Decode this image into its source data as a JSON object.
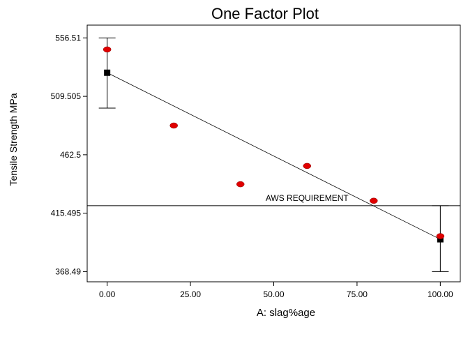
{
  "chart_data": {
    "type": "scatter",
    "title": "One Factor Plot",
    "xlabel": "A: slag%age",
    "ylabel": "Tensile Strength MPa",
    "xlim": [
      -6,
      106
    ],
    "ylim": [
      360.3,
      566.8
    ],
    "x_ticks": [
      "0.00",
      "25.00",
      "50.00",
      "75.00",
      "100.00"
    ],
    "y_ticks": [
      "556.51",
      "509.505",
      "462.5",
      "415.495",
      "368.49"
    ],
    "design_points": {
      "x": [
        0,
        20,
        40,
        60,
        80,
        100
      ],
      "y": [
        547.2,
        486.0,
        438.8,
        453.5,
        425.5,
        397.0
      ]
    },
    "fit_line": {
      "x": [
        0,
        100
      ],
      "y": [
        528.5,
        394.5
      ]
    },
    "error_bars": [
      {
        "x": 0,
        "center": 528.5,
        "low": 500.0,
        "high": 556.5
      },
      {
        "x": 100,
        "center": 394.5,
        "low": 368.5,
        "high": 421.5
      }
    ],
    "reference_line": {
      "y": 421.5,
      "label": "AWS REQUIREMENT"
    },
    "colors": {
      "points": "#e00000",
      "ends": "#000000",
      "line": "#000000"
    }
  }
}
